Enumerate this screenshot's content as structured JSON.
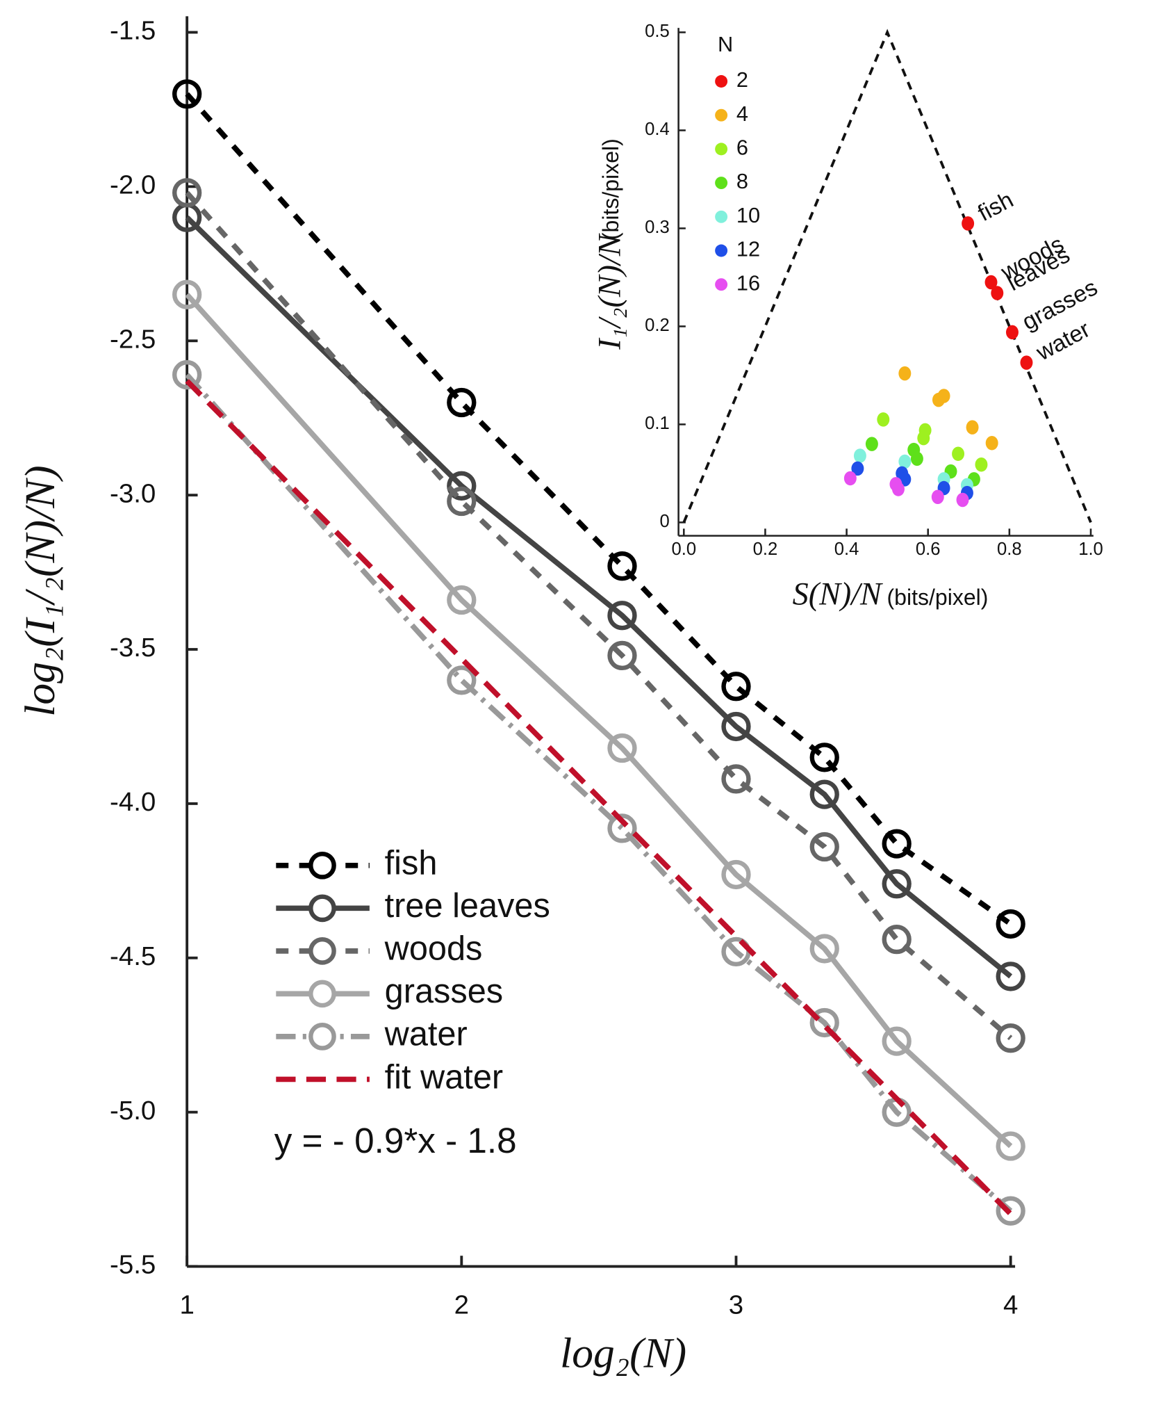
{
  "chart_data": [
    {
      "type": "line",
      "xlabel": "log₂(N)",
      "ylabel": "log₂(I₁/₂(N)/N)",
      "annotation": "y = - 0.9*x - 1.8",
      "xlim": [
        1,
        4
      ],
      "ylim": [
        -5.5,
        -1.5
      ],
      "xticks": [
        1,
        2,
        3,
        4
      ],
      "yticks": [
        -1.5,
        {
          "value": -2,
          "label": "-2.0"
        },
        -2.5,
        {
          "value": -3,
          "label": "-3.0"
        },
        -3.5,
        {
          "value": -4,
          "label": "-4.0"
        },
        -4.5,
        {
          "value": -5,
          "label": "-5.0"
        },
        -5.5
      ],
      "series": [
        {
          "name": "fish",
          "color": "#000000",
          "dash": "14 12",
          "marker": true,
          "x": [
            1,
            2,
            2.585,
            3,
            3.322,
            3.585,
            4
          ],
          "values": [
            -1.7,
            -2.7,
            -3.23,
            -3.62,
            -3.85,
            -4.13,
            -4.39
          ]
        },
        {
          "name": "tree leaves",
          "color": "#444444",
          "dash": "none",
          "marker": true,
          "x": [
            1,
            2,
            2.585,
            3,
            3.322,
            3.585,
            4
          ],
          "values": [
            -2.1,
            -2.97,
            -3.39,
            -3.75,
            -3.97,
            -4.26,
            -4.56
          ]
        },
        {
          "name": "woods",
          "color": "#666666",
          "dash": "14 12",
          "marker": true,
          "x": [
            1,
            2,
            2.585,
            3,
            3.322,
            3.585,
            4
          ],
          "values": [
            -2.02,
            -3.02,
            -3.52,
            -3.92,
            -4.14,
            -4.44,
            -4.76
          ]
        },
        {
          "name": "grasses",
          "color": "#a6a6a6",
          "dash": "none",
          "marker": true,
          "x": [
            1,
            2,
            2.585,
            3,
            3.322,
            3.585,
            4
          ],
          "values": [
            -2.35,
            -3.34,
            -3.82,
            -4.23,
            -4.47,
            -4.77,
            -5.11
          ]
        },
        {
          "name": "water",
          "color": "#999999",
          "dash": "22 8 4 8",
          "marker": true,
          "x": [
            1,
            2,
            2.585,
            3,
            3.322,
            3.585,
            4
          ],
          "values": [
            -2.61,
            -3.6,
            -4.08,
            -4.48,
            -4.71,
            -5.0,
            -5.32
          ]
        },
        {
          "name": "fit water",
          "color": "#c0102a",
          "dash": "22 12",
          "marker": false,
          "x": [
            1,
            4
          ],
          "values": [
            -2.63,
            -5.33
          ]
        }
      ]
    },
    {
      "type": "scatter",
      "xlabel": "S(N)/N",
      "xunit": "(bits/pixel)",
      "ylabel": "I₁/₂(N)/N",
      "yunit": "(bits/pixel)",
      "legend_title": "N",
      "xlim": [
        0,
        1
      ],
      "ylim": [
        0,
        0.5
      ],
      "xticks": [
        {
          "value": 0,
          "label": "0.0"
        },
        0.2,
        0.4,
        0.6,
        0.8,
        {
          "value": 1,
          "label": "1.0"
        }
      ],
      "yticks": [
        0,
        0.1,
        0.2,
        0.3,
        0.4,
        0.5
      ],
      "bound": {
        "x": [
          0,
          0.5,
          1
        ],
        "y": [
          0,
          0.5,
          0
        ]
      },
      "series": [
        {
          "name": "2",
          "color": "#ee1111",
          "x": [
            0.698,
            0.755,
            0.77,
            0.807,
            0.842
          ],
          "values": [
            0.305,
            0.245,
            0.234,
            0.194,
            0.163
          ],
          "point_labels": [
            "fish",
            "woods",
            "leaves",
            "grasses",
            "water"
          ]
        },
        {
          "name": "4",
          "color": "#f5b21a",
          "x": [
            0.543,
            0.626,
            0.639,
            0.709,
            0.757
          ],
          "values": [
            0.152,
            0.125,
            0.129,
            0.097,
            0.081
          ]
        },
        {
          "name": "6",
          "color": "#9ef020",
          "x": [
            0.49,
            0.593,
            0.589,
            0.674,
            0.731
          ],
          "values": [
            0.105,
            0.094,
            0.086,
            0.07,
            0.059
          ]
        },
        {
          "name": "8",
          "color": "#5ee01a",
          "x": [
            0.462,
            0.565,
            0.573,
            0.656,
            0.713
          ],
          "values": [
            0.08,
            0.074,
            0.065,
            0.052,
            0.044
          ]
        },
        {
          "name": "10",
          "color": "#80f0dc",
          "x": [
            0.433,
            0.543,
            0.639,
            0.696
          ],
          "values": [
            0.068,
            0.062,
            0.044,
            0.038
          ]
        },
        {
          "name": "12",
          "color": "#1f4fe8",
          "x": [
            0.427,
            0.536,
            0.543,
            0.639,
            0.696
          ],
          "values": [
            0.055,
            0.05,
            0.044,
            0.035,
            0.03
          ]
        },
        {
          "name": "16",
          "color": "#e64ef0",
          "x": [
            0.409,
            0.521,
            0.527,
            0.624,
            0.685
          ],
          "values": [
            0.045,
            0.039,
            0.034,
            0.026,
            0.023
          ]
        }
      ]
    }
  ]
}
